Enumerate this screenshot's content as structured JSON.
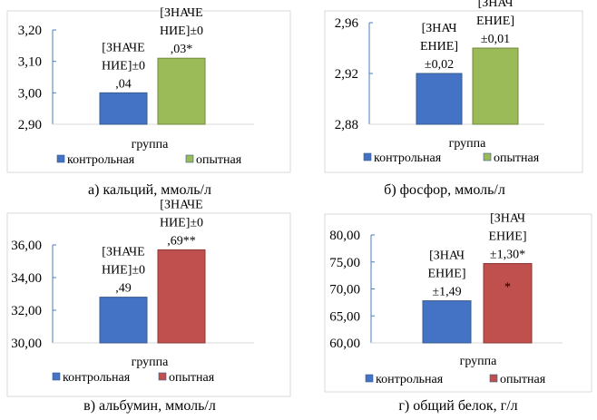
{
  "chart_data": [
    {
      "type": "bar",
      "title": "а) кальций, ммоль/л",
      "xlabel": "группа",
      "ylim": [
        2.9,
        3.2
      ],
      "yticks": [
        "2,90",
        "3,00",
        "3,10",
        "3,20"
      ],
      "ytick_values": [
        2.9,
        3.0,
        3.1,
        3.2
      ],
      "categories": [
        "группа"
      ],
      "series": [
        {
          "name": "контрольная",
          "values": [
            3.0
          ],
          "color": "#4472c4",
          "label_lines": [
            "[ЗНАЧЕ",
            "НИЕ]±0",
            ",04"
          ]
        },
        {
          "name": "опытная",
          "values": [
            3.11
          ],
          "color": "#9bbb59",
          "label_lines": [
            "[ЗНАЧЕ",
            "НИЕ]±0",
            ",03*"
          ]
        }
      ],
      "legend": "bottom"
    },
    {
      "type": "bar",
      "title": "б) фосфор, ммоль/л",
      "xlabel": "группа",
      "ylim": [
        2.88,
        2.96
      ],
      "yticks": [
        "2,88",
        "2,92",
        "2,96"
      ],
      "ytick_values": [
        2.88,
        2.92,
        2.96
      ],
      "categories": [
        "группа"
      ],
      "series": [
        {
          "name": "контрольная",
          "values": [
            2.92
          ],
          "color": "#4472c4",
          "label_lines": [
            "[ЗНАЧ",
            "ЕНИЕ]",
            "±0,02"
          ]
        },
        {
          "name": "опытная",
          "values": [
            2.94
          ],
          "color": "#9bbb59",
          "label_lines": [
            "[ЗНАЧ",
            "ЕНИЕ]",
            "±0,01"
          ]
        }
      ],
      "legend": "bottom"
    },
    {
      "type": "bar",
      "title": "в) альбумин, ммоль/л",
      "xlabel": "группа",
      "ylim": [
        30,
        36
      ],
      "yticks": [
        "30,00",
        "32,00",
        "34,00",
        "36,00"
      ],
      "ytick_values": [
        30,
        32,
        34,
        36
      ],
      "categories": [
        "группа"
      ],
      "series": [
        {
          "name": "контрольная",
          "values": [
            32.8
          ],
          "color": "#4472c4",
          "label_lines": [
            "[ЗНАЧЕ",
            "НИЕ]±0",
            ",49"
          ]
        },
        {
          "name": "опытная",
          "values": [
            35.7
          ],
          "color": "#c0504d",
          "label_lines": [
            "[ЗНАЧЕ",
            "НИЕ]±0",
            ",69**"
          ]
        }
      ],
      "legend": "bottom"
    },
    {
      "type": "bar",
      "title": "г) общий белок, г/л",
      "xlabel": "группа",
      "ylim": [
        60,
        80
      ],
      "yticks": [
        "60,00",
        "65,00",
        "70,00",
        "75,00",
        "80,00"
      ],
      "ytick_values": [
        60,
        65,
        70,
        75,
        80
      ],
      "categories": [
        "группа"
      ],
      "series": [
        {
          "name": "контрольная",
          "values": [
            67.8
          ],
          "color": "#4472c4",
          "label_lines": [
            "[ЗНАЧ",
            "ЕНИЕ]",
            "±1,49"
          ]
        },
        {
          "name": "опытная",
          "values": [
            74.7
          ],
          "color": "#c0504d",
          "label_lines": [
            "[ЗНАЧ",
            "ЕНИЕ]",
            "±1,30*",
            "*"
          ]
        }
      ],
      "legend": "bottom"
    }
  ]
}
